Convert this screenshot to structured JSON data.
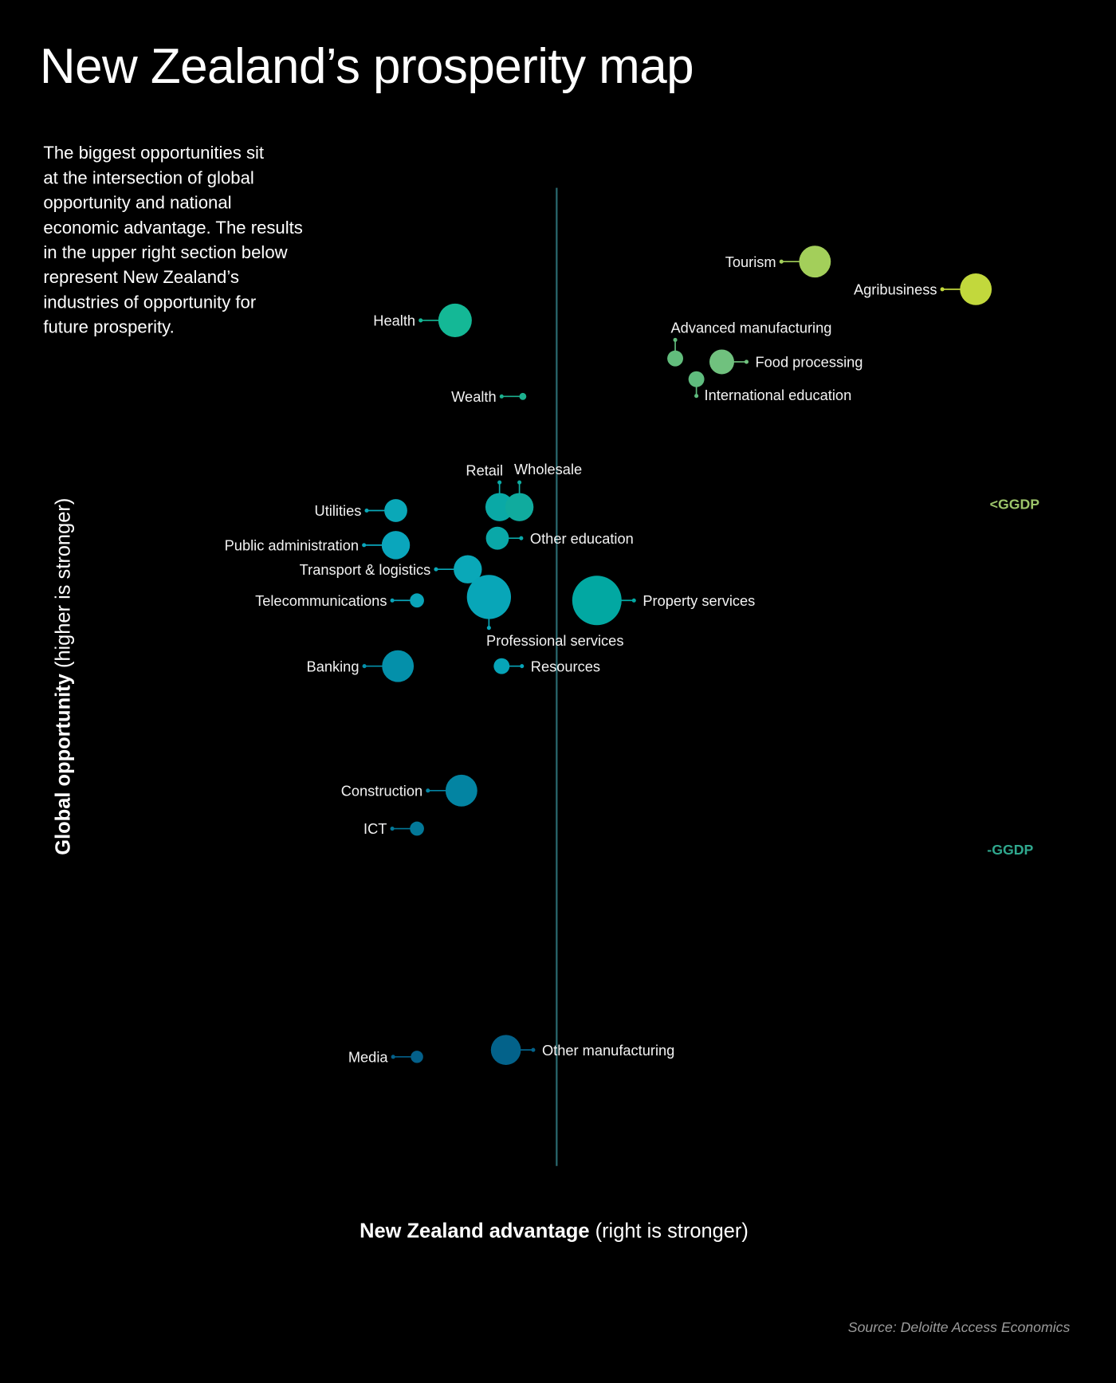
{
  "title": "New Zealand’s prosperity map",
  "intro_lines": [
    "The biggest opportunities sit",
    "at the intersection of global",
    "opportunity and national",
    "economic advantage. The results",
    "in the upper right section below",
    "represent New Zealand’s",
    "industries of opportunity for",
    "future prosperity."
  ],
  "source": "Source: Deloitte Access Economics",
  "chart_data": {
    "type": "scatter",
    "subtype": "bubble",
    "title": "",
    "xlabel": {
      "bold": "New Zealand advantage",
      "normal": " (right is stronger)"
    },
    "ylabel": {
      "bold": "Global opportunity",
      "normal": " (higher is stronger)"
    },
    "xlim": [
      -10,
      10
    ],
    "ylim": [
      -19.2,
      9.1
    ],
    "grid": false,
    "reference_lines": [
      {
        "label": "<GGDP",
        "y": 0,
        "color": "#9cc46a"
      },
      {
        "label": "-GGDP",
        "y": -10,
        "color": "#2fa88e"
      }
    ],
    "points": [
      {
        "name": "Tourism",
        "x": 6.1,
        "y": 7.0,
        "size": 18,
        "color": "#a3cf5a",
        "label": "left"
      },
      {
        "name": "Agribusiness",
        "x": 9.9,
        "y": 6.2,
        "size": 18,
        "color": "#c2d83c",
        "label": "left"
      },
      {
        "name": "Health",
        "x": -2.4,
        "y": 5.3,
        "size": 19,
        "color": "#14b896",
        "label": "left"
      },
      {
        "name": "Advanced manufacturing",
        "x": 2.8,
        "y": 4.2,
        "size": 9,
        "color": "#62bd7c",
        "label": "top"
      },
      {
        "name": "Food processing",
        "x": 3.9,
        "y": 4.1,
        "size": 14,
        "color": "#70c17e",
        "label": "right"
      },
      {
        "name": "International education",
        "x": 3.3,
        "y": 3.6,
        "size": 9,
        "color": "#5fbc7e",
        "label": "bottom"
      },
      {
        "name": "Wealth",
        "x": -0.8,
        "y": 3.1,
        "size": 4,
        "color": "#1cb08e",
        "label": "left"
      },
      {
        "name": "Retail",
        "x": -1.35,
        "y": -0.1,
        "size": 16,
        "color": "#0aa9a6",
        "label": "top-left"
      },
      {
        "name": "Wholesale",
        "x": -0.88,
        "y": -0.1,
        "size": 16,
        "color": "#10ab9e",
        "label": "top-right"
      },
      {
        "name": "Utilities",
        "x": -3.8,
        "y": -0.2,
        "size": 13,
        "color": "#0aa8b8",
        "label": "left"
      },
      {
        "name": "Other education",
        "x": -1.4,
        "y": -1.0,
        "size": 13,
        "color": "#0aa8a8",
        "label": "right"
      },
      {
        "name": "Public administration",
        "x": -3.8,
        "y": -1.2,
        "size": 16,
        "color": "#0aa6bc",
        "label": "left"
      },
      {
        "name": "Transport & logistics",
        "x": -2.1,
        "y": -1.9,
        "size": 16,
        "color": "#0aa8b8",
        "label": "left"
      },
      {
        "name": "Telecommunications",
        "x": -3.3,
        "y": -2.8,
        "size": 8,
        "color": "#0aa4b8",
        "label": "left"
      },
      {
        "name": "Professional services",
        "x": -1.6,
        "y": -2.7,
        "size": 25,
        "color": "#08a6b8",
        "label": "bottom"
      },
      {
        "name": "Property services",
        "x": 0.95,
        "y": -2.8,
        "size": 28,
        "color": "#02a8a2",
        "label": "right"
      },
      {
        "name": "Banking",
        "x": -3.75,
        "y": -4.7,
        "size": 18,
        "color": "#0490aa",
        "label": "left"
      },
      {
        "name": "Resources",
        "x": -1.3,
        "y": -4.7,
        "size": 9,
        "color": "#06a4b8",
        "label": "right"
      },
      {
        "name": "Construction",
        "x": -2.25,
        "y": -8.3,
        "size": 18,
        "color": "#0384a2",
        "label": "left"
      },
      {
        "name": "ICT",
        "x": -3.3,
        "y": -9.4,
        "size": 8,
        "color": "#037898",
        "label": "left"
      },
      {
        "name": "Media",
        "x": -3.3,
        "y": -16.0,
        "size": 7,
        "color": "#04608a",
        "label": "left"
      },
      {
        "name": "Other manufacturing",
        "x": -1.2,
        "y": -15.8,
        "size": 17,
        "color": "#03628a",
        "label": "right"
      }
    ]
  }
}
